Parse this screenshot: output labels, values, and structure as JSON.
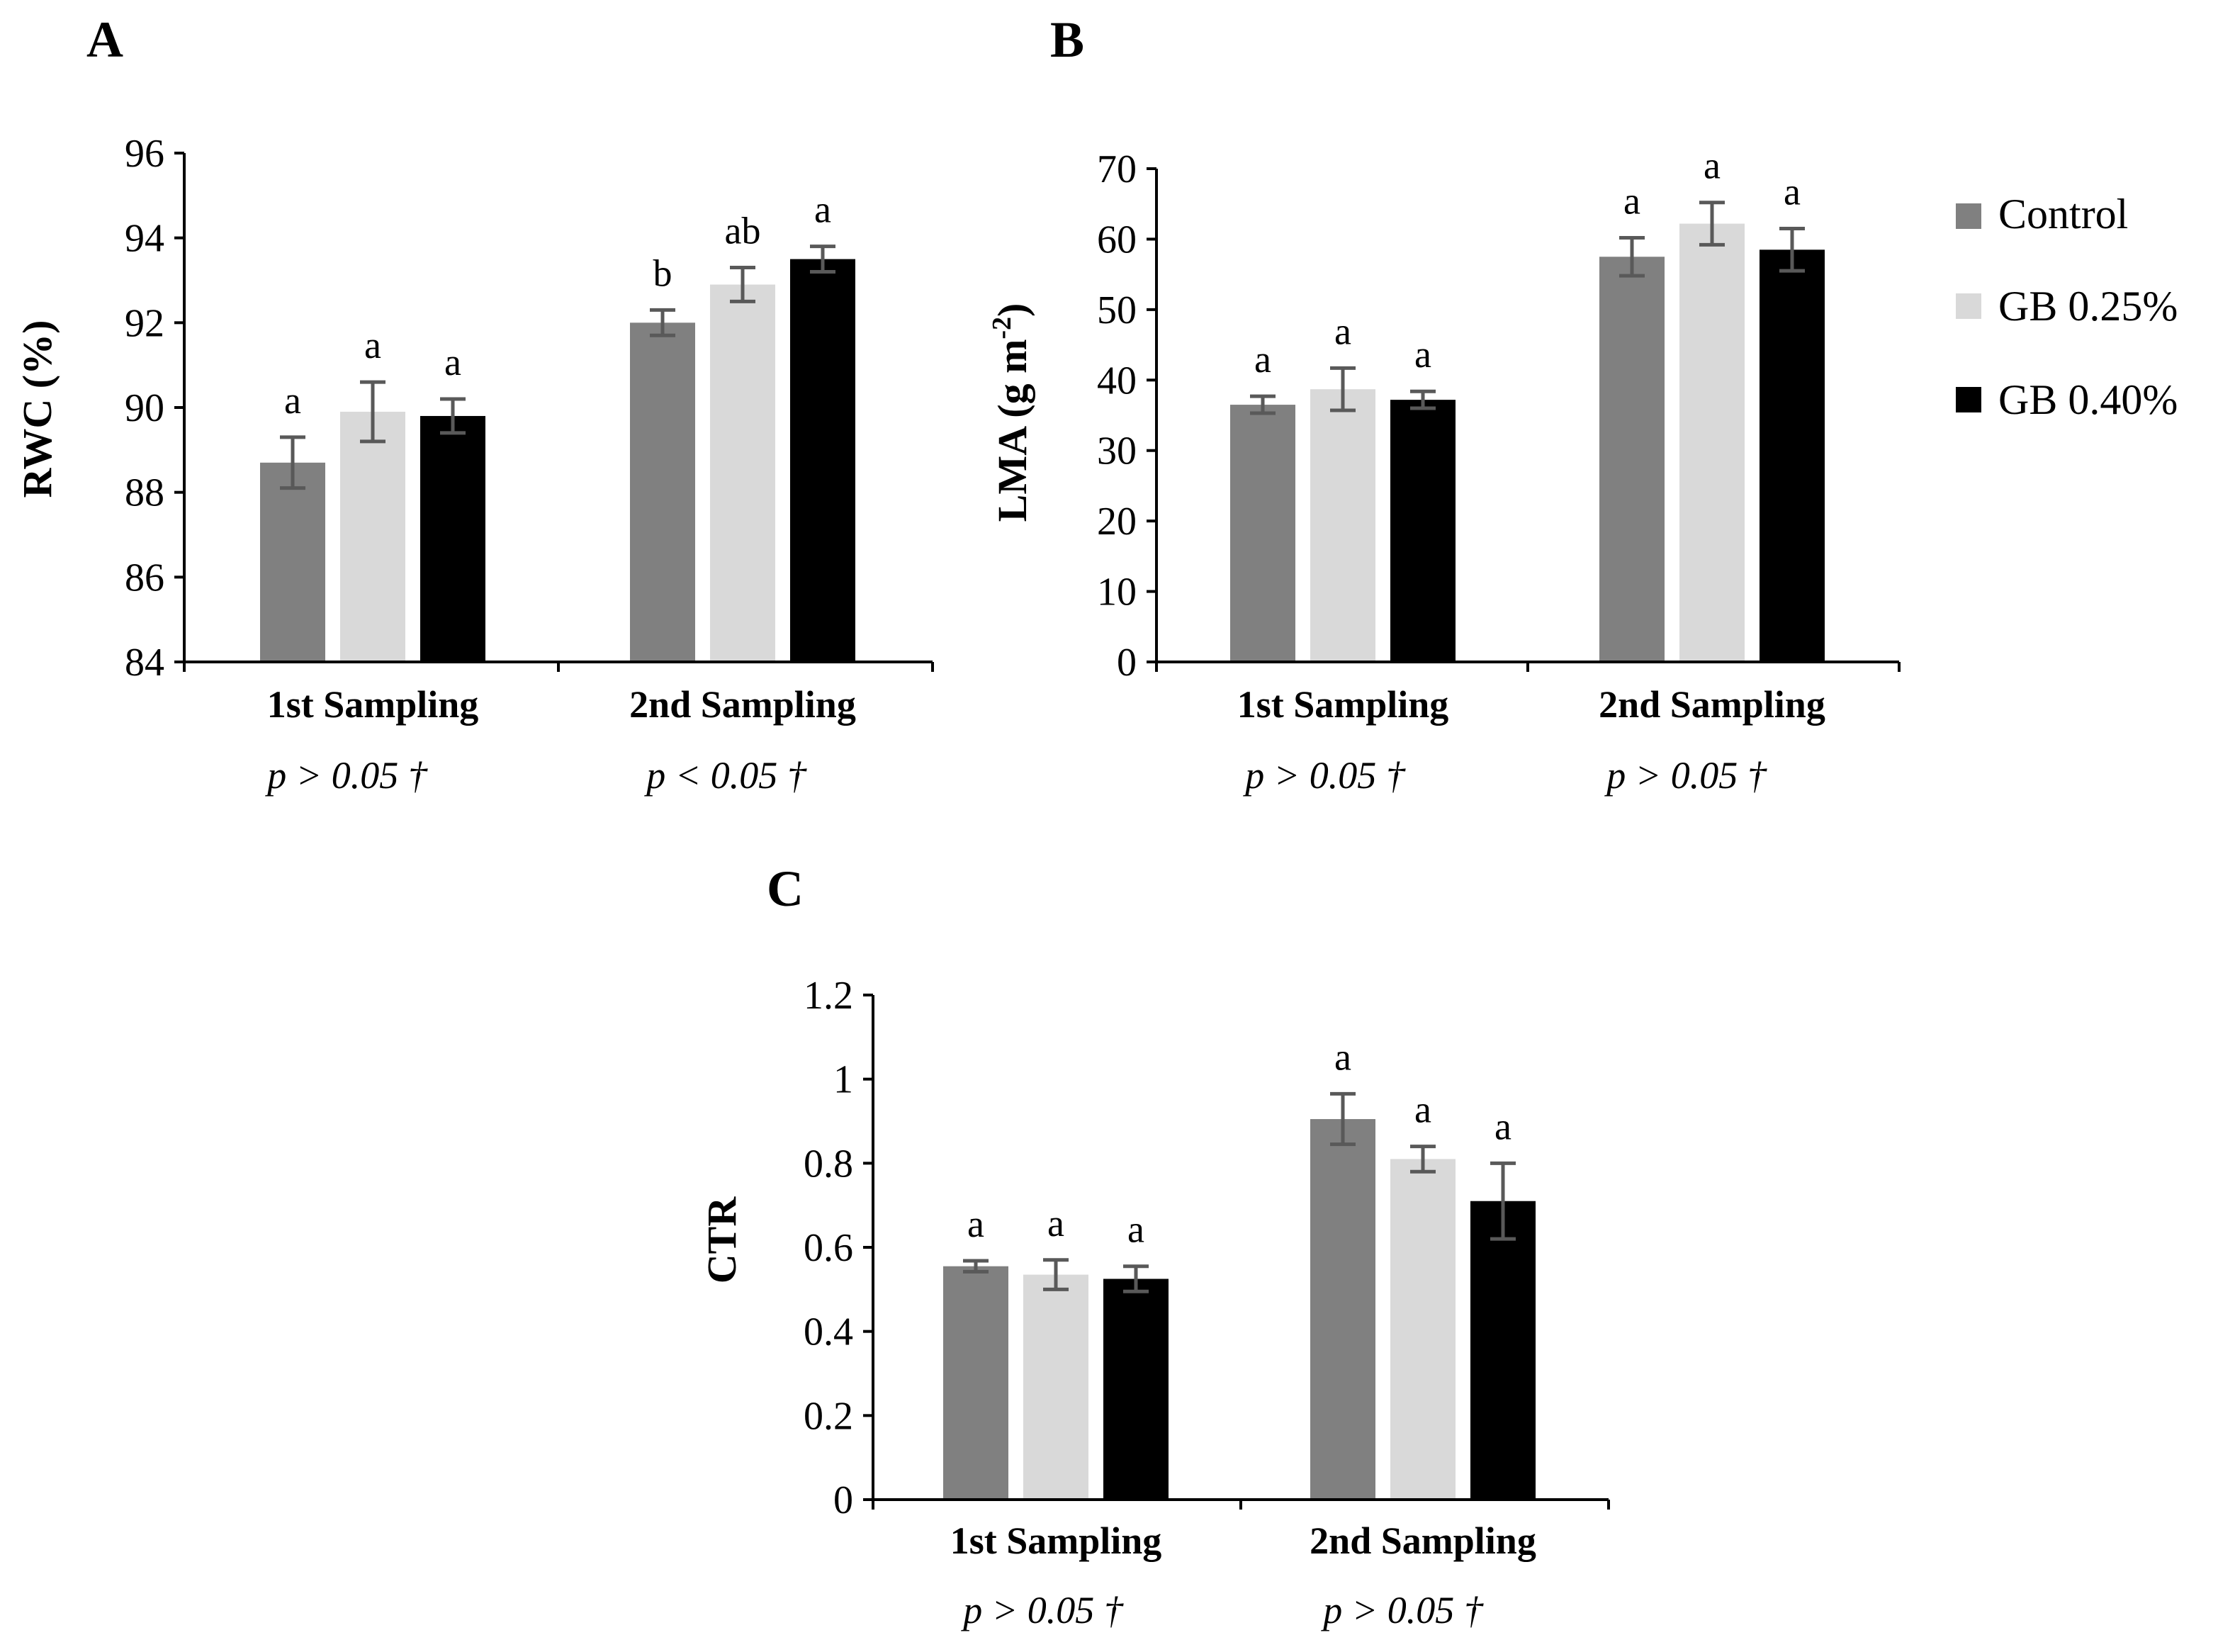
{
  "legend": [
    {
      "name": "Control",
      "color": "#808080"
    },
    {
      "name": "GB 0.25%",
      "color": "#d9d9d9"
    },
    {
      "name": "GB 0.40%",
      "color": "#000000"
    }
  ],
  "chart_data": [
    {
      "type": "bar",
      "panel": "A",
      "ylabel": "RWC (%)",
      "ylim": [
        84,
        96
      ],
      "yticks": [
        84,
        86,
        88,
        90,
        92,
        94,
        96
      ],
      "categories": [
        "1st Sampling",
        "2nd Sampling"
      ],
      "pvalues": [
        "p > 0.05 †",
        "p < 0.05 †"
      ],
      "series": [
        {
          "name": "Control",
          "values": [
            88.7,
            92.0
          ],
          "errors": [
            0.6,
            0.3
          ],
          "labels": [
            "a",
            "b"
          ]
        },
        {
          "name": "GB 0.25%",
          "values": [
            89.9,
            92.9
          ],
          "errors": [
            0.7,
            0.4
          ],
          "labels": [
            "a",
            "ab"
          ]
        },
        {
          "name": "GB 0.40%",
          "values": [
            89.8,
            93.5
          ],
          "errors": [
            0.4,
            0.3
          ],
          "labels": [
            "a",
            "a"
          ]
        }
      ]
    },
    {
      "type": "bar",
      "panel": "B",
      "ylabel": "LMA (g m",
      "ylabel_sup": "-2",
      "ylabel_end": ")",
      "ylim": [
        0,
        70
      ],
      "yticks": [
        0,
        10,
        20,
        30,
        40,
        50,
        60,
        70
      ],
      "categories": [
        "1st Sampling",
        "2nd Sampling"
      ],
      "pvalues": [
        "p > 0.05 †",
        "p > 0.05 †"
      ],
      "series": [
        {
          "name": "Control",
          "values": [
            36.5,
            57.5
          ],
          "errors": [
            1.2,
            2.7
          ],
          "labels": [
            "a",
            "a"
          ]
        },
        {
          "name": "GB 0.25%",
          "values": [
            38.7,
            62.2
          ],
          "errors": [
            3.0,
            3.0
          ],
          "labels": [
            "a",
            "a"
          ]
        },
        {
          "name": "GB 0.40%",
          "values": [
            37.2,
            58.5
          ],
          "errors": [
            1.2,
            3.0
          ],
          "labels": [
            "a",
            "a"
          ]
        }
      ]
    },
    {
      "type": "bar",
      "panel": "C",
      "ylabel": "CTR",
      "ylim": [
        0,
        1.2
      ],
      "yticks": [
        0,
        0.2,
        0.4,
        0.6,
        0.8,
        1,
        1.2
      ],
      "yticklabels": [
        "0",
        "0.2",
        "0.4",
        "0.6",
        "0.8",
        "1",
        "1.2"
      ],
      "categories": [
        "1st Sampling",
        "2nd Sampling"
      ],
      "pvalues": [
        "p > 0.05 †",
        "p > 0.05 †"
      ],
      "series": [
        {
          "name": "Control",
          "values": [
            0.555,
            0.905
          ],
          "errors": [
            0.013,
            0.06
          ],
          "labels": [
            "a",
            "a"
          ]
        },
        {
          "name": "GB 0.25%",
          "values": [
            0.535,
            0.81
          ],
          "errors": [
            0.035,
            0.03
          ],
          "labels": [
            "a",
            "a"
          ]
        },
        {
          "name": "GB 0.40%",
          "values": [
            0.525,
            0.71
          ],
          "errors": [
            0.03,
            0.09
          ],
          "labels": [
            "a",
            "a"
          ]
        }
      ]
    }
  ]
}
